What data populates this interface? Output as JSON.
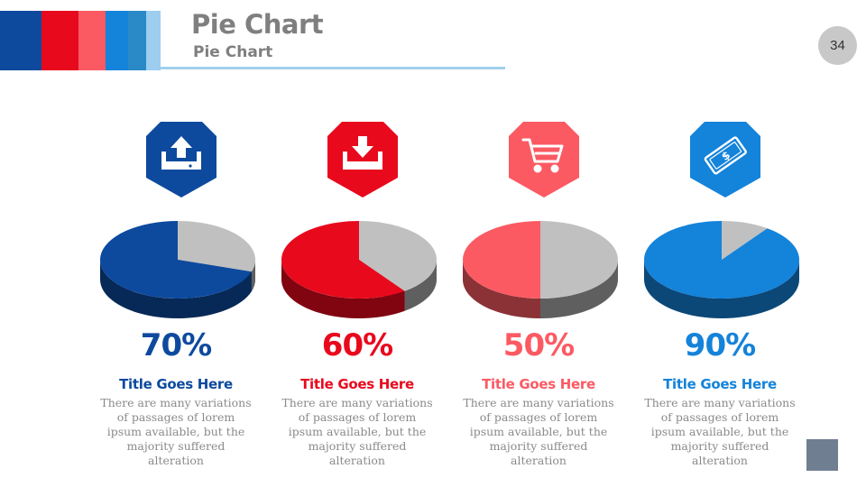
{
  "header": {
    "title": "Pie Chart",
    "subtitle": "Pie Chart",
    "page_number": "34",
    "stripe_colors": [
      "#0d4a9e",
      "#e8091d",
      "#fb5a63",
      "#1483da",
      "#2a8ac8",
      "#9dcdef"
    ]
  },
  "chart_data": [
    {
      "type": "pie",
      "values": [
        70,
        30
      ],
      "label": "70%",
      "title": "Title Goes Here",
      "color": "#0d4a9e",
      "icon": "upload-icon"
    },
    {
      "type": "pie",
      "values": [
        60,
        40
      ],
      "label": "60%",
      "title": "Title Goes Here",
      "color": "#e8091d",
      "icon": "download-icon"
    },
    {
      "type": "pie",
      "values": [
        50,
        50
      ],
      "label": "50%",
      "title": "Title Goes Here",
      "color": "#fb5a63",
      "icon": "shopping-cart-icon"
    },
    {
      "type": "pie",
      "values": [
        90,
        10
      ],
      "label": "90%",
      "title": "Title Goes Here",
      "color": "#1483da",
      "icon": "money-bill-icon"
    }
  ],
  "cards": [
    {
      "description": "There are many variations of passages of lorem ipsum available, but the majority suffered alteration"
    },
    {
      "description": "There are many variations of passages of lorem ipsum available, but the majority suffered alteration"
    },
    {
      "description": "There are many variations of passages of lorem ipsum available, but the majority suffered alteration"
    },
    {
      "description": "There are many variations of passages of lorem ipsum available, but the majority suffered alteration"
    }
  ]
}
